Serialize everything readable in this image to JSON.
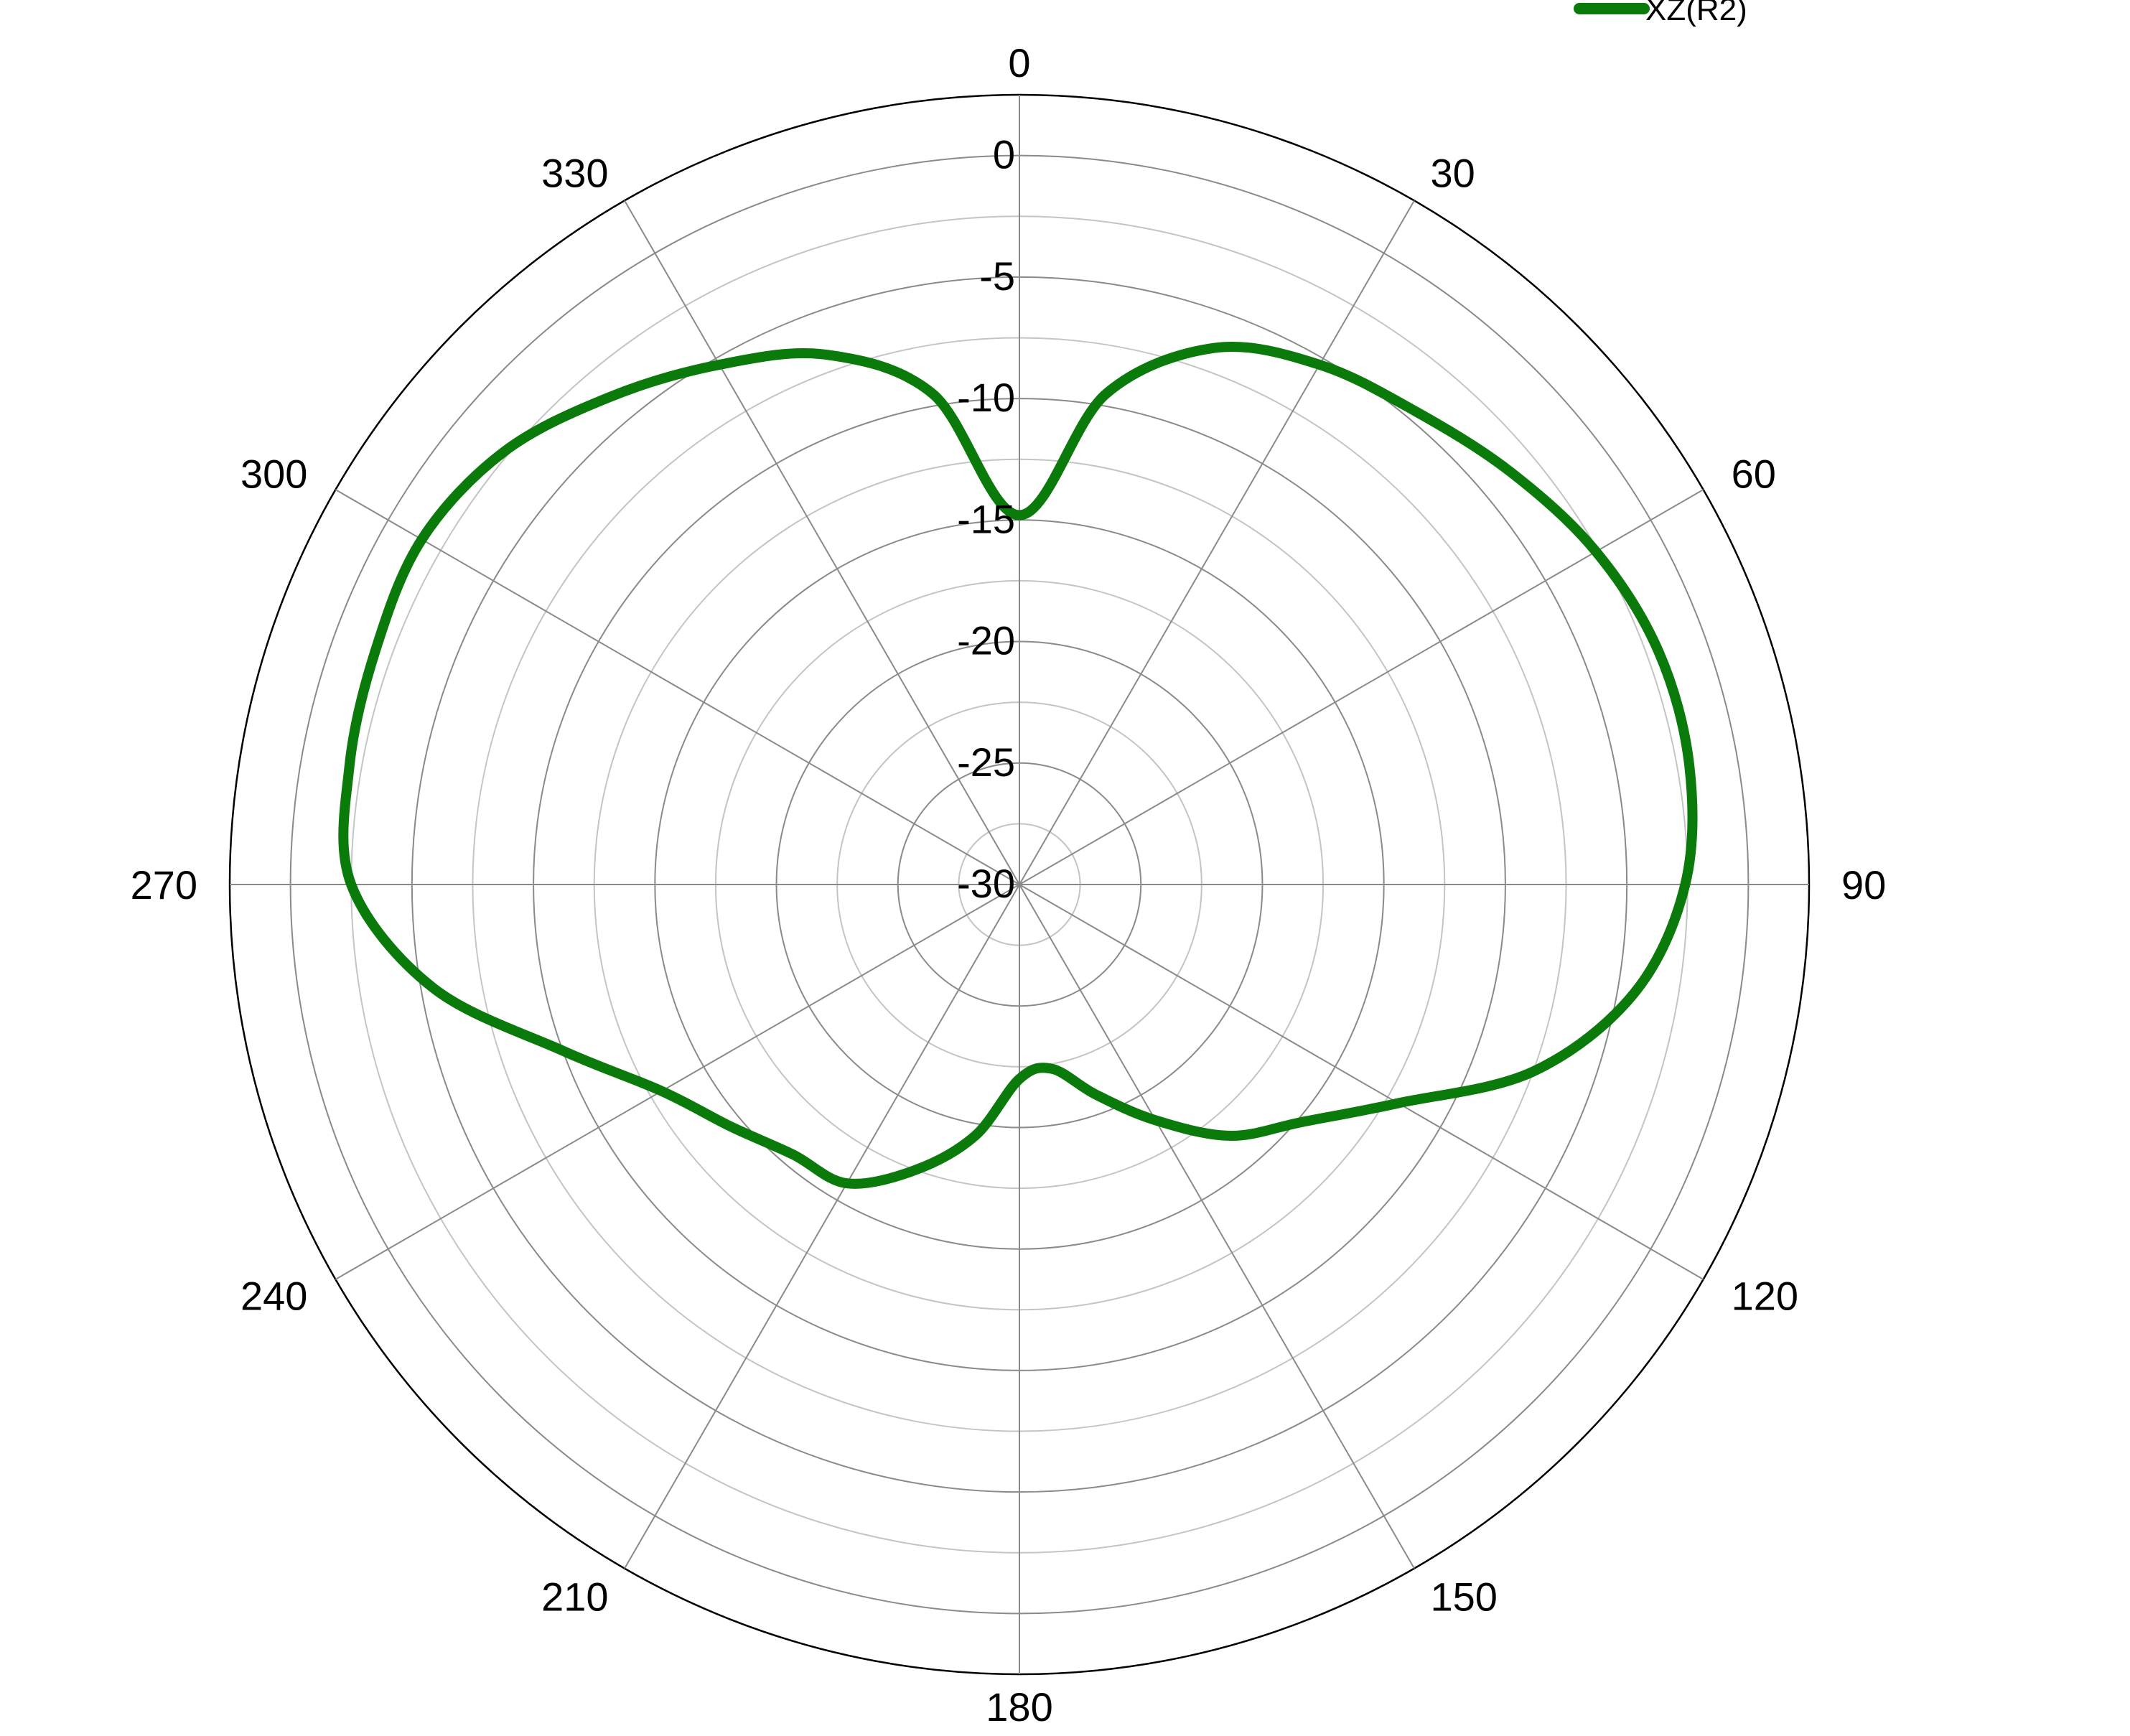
{
  "chart_data": {
    "type": "polar-line",
    "title": "",
    "angle_unit": "degrees",
    "angle_direction": "clockwise",
    "angle_zero": "top",
    "angle_ticks": [
      0,
      30,
      60,
      90,
      120,
      150,
      180,
      210,
      240,
      270,
      300,
      330
    ],
    "angle_tick_labels": [
      "0",
      "30",
      "60",
      "90",
      "120",
      "150",
      "180",
      "210",
      "240",
      "270",
      "300",
      "330"
    ],
    "radial_range": [
      -30,
      2.5
    ],
    "radial_ticks": [
      0,
      -5,
      -10,
      -15,
      -20,
      -25,
      -30
    ],
    "radial_tick_labels": [
      "0",
      "-5",
      "-10",
      "-15",
      "-20",
      "-25",
      "-30"
    ],
    "minor_radial_ticks": [
      -2.5,
      -7.5,
      -12.5,
      -17.5,
      -22.5,
      -27.5
    ],
    "grid": true,
    "legend": {
      "placement": "top-right"
    },
    "colors": {
      "series": "#0a7a0a",
      "major_grid": "#8a8a8a",
      "minor_grid": "#c4c4c4",
      "outer_ring": "#000000"
    },
    "series": [
      {
        "name": "XZ(R2)",
        "color": "#0a7a0a",
        "angles": [
          0,
          10,
          20,
          30,
          40,
          50,
          60,
          70,
          80,
          90,
          100,
          110,
          120,
          130,
          140,
          150,
          160,
          170,
          180,
          190,
          200,
          210,
          220,
          230,
          240,
          250,
          260,
          270,
          280,
          290,
          300,
          310,
          320,
          330,
          340,
          350
        ],
        "values": [
          -14.8,
          -9.5,
          -6.5,
          -5.3,
          -4.6,
          -3.6,
          -2.6,
          -2.0,
          -2.0,
          -2.6,
          -4.3,
          -7.5,
          -12.0,
          -14.8,
          -16.5,
          -18.8,
          -20.8,
          -22.3,
          -22.0,
          -19.5,
          -17.5,
          -15.8,
          -15.5,
          -14.5,
          -13.0,
          -10.0,
          -5.5,
          -2.5,
          -2.0,
          -1.8,
          -1.6,
          -2.3,
          -3.8,
          -5.3,
          -6.8,
          -9.5
        ]
      }
    ]
  }
}
